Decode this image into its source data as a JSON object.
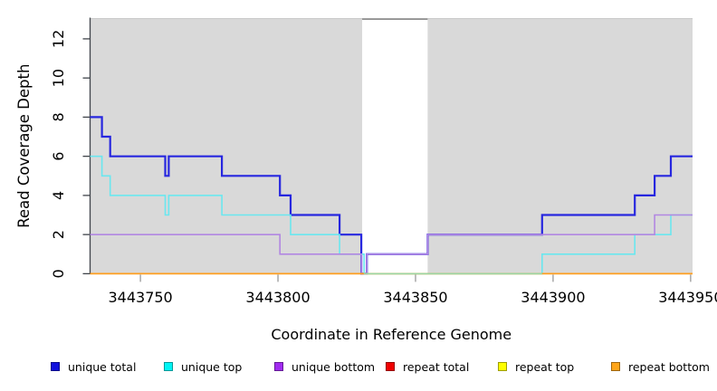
{
  "chart_data": {
    "type": "line",
    "subtype": "step-coverage-plot",
    "title": "",
    "xlabel": "Coordinate in Reference Genome",
    "ylabel": "Read Coverage Depth",
    "xlim": [
      3443731.7,
      3443950.7
    ],
    "ylim": [
      0,
      13.06
    ],
    "grid": "off",
    "panel_background": "#d9d9d9",
    "panel_top_edge_color": "#c9c9c9",
    "axis_line_color": "#3f444a",
    "x_tick_color": "#999999",
    "y_tick_color": "#3f444a",
    "tick_label_color": "#000000",
    "xticks": {
      "values": [
        3443750,
        3443800,
        3443850,
        3443900,
        3443950
      ],
      "labels": [
        "3443750",
        "3443800",
        "3443850",
        "3443900",
        "3443950"
      ]
    },
    "yticks": {
      "values": [
        0,
        2,
        4,
        6,
        8,
        10,
        12
      ],
      "labels": [
        "0",
        "2",
        "4",
        "6",
        "8",
        "10",
        "12"
      ]
    },
    "highlight_region": {
      "x1": 3443830.6,
      "x2": 3443854.4,
      "fill": "#ffffff",
      "top_border_color": "#828282"
    },
    "series": [
      {
        "name": "repeat total",
        "color": "#bb0000",
        "width": 1.2,
        "points": [
          [
            3443731.7,
            0
          ],
          [
            3443950.7,
            0
          ]
        ]
      },
      {
        "name": "repeat top",
        "color": "#e8e800",
        "width": 1.2,
        "points": [
          [
            3443731.7,
            0
          ],
          [
            3443950.7,
            0
          ]
        ]
      },
      {
        "name": "unique total",
        "color": "#2727df",
        "width": 2.2,
        "points": [
          [
            3443731.7,
            8
          ],
          [
            3443736,
            8
          ],
          [
            3443736,
            7
          ],
          [
            3443739,
            7
          ],
          [
            3443739,
            6
          ],
          [
            3443759,
            6
          ],
          [
            3443759,
            5
          ],
          [
            3443760.3,
            5
          ],
          [
            3443760.3,
            6
          ],
          [
            3443779.6,
            6
          ],
          [
            3443779.6,
            5
          ],
          [
            3443800.7,
            5
          ],
          [
            3443800.7,
            4
          ],
          [
            3443804.6,
            4
          ],
          [
            3443804.6,
            3
          ],
          [
            3443822.4,
            3
          ],
          [
            3443822.4,
            2
          ],
          [
            3443830.3,
            2
          ],
          [
            3443830.3,
            0
          ],
          [
            3443832.3,
            0
          ],
          [
            3443832.3,
            1
          ],
          [
            3443854.4,
            1
          ],
          [
            3443854.4,
            2
          ],
          [
            3443896,
            2
          ],
          [
            3443896,
            3
          ],
          [
            3443929.7,
            3
          ],
          [
            3443929.7,
            4
          ],
          [
            3443936.9,
            4
          ],
          [
            3443936.9,
            5
          ],
          [
            3443942.8,
            5
          ],
          [
            3443942.8,
            6
          ],
          [
            3443950.7,
            6
          ]
        ]
      },
      {
        "name": "unique top",
        "color": "#6ae7ef",
        "width": 1.6,
        "points": [
          [
            3443731.7,
            6
          ],
          [
            3443736,
            6
          ],
          [
            3443736,
            5
          ],
          [
            3443739,
            5
          ],
          [
            3443739,
            4
          ],
          [
            3443759,
            4
          ],
          [
            3443759,
            3
          ],
          [
            3443760.3,
            3
          ],
          [
            3443760.3,
            4
          ],
          [
            3443779.6,
            4
          ],
          [
            3443779.6,
            3
          ],
          [
            3443804.6,
            3
          ],
          [
            3443804.6,
            2
          ],
          [
            3443822.4,
            2
          ],
          [
            3443822.4,
            1
          ],
          [
            3443831.3,
            1
          ],
          [
            3443831.3,
            0
          ],
          [
            3443896,
            0
          ],
          [
            3443896,
            1
          ],
          [
            3443929.7,
            1
          ],
          [
            3443929.7,
            2
          ],
          [
            3443942.8,
            2
          ],
          [
            3443942.8,
            3
          ],
          [
            3443950.7,
            3
          ]
        ]
      },
      {
        "name": "unique bottom",
        "color": "#b287e2",
        "width": 1.6,
        "points": [
          [
            3443731.7,
            2
          ],
          [
            3443800.7,
            2
          ],
          [
            3443800.7,
            1
          ],
          [
            3443830.3,
            1
          ],
          [
            3443830.3,
            0
          ],
          [
            3443832.3,
            0
          ],
          [
            3443832.3,
            1
          ],
          [
            3443854.4,
            1
          ],
          [
            3443854.4,
            2
          ],
          [
            3443936.9,
            2
          ],
          [
            3443936.9,
            3
          ],
          [
            3443950.7,
            3
          ]
        ]
      },
      {
        "name": "repeat bottom",
        "color": "#ff9e1e",
        "width": 1.8,
        "points": [
          [
            3443731.7,
            0
          ],
          [
            3443950.7,
            0
          ]
        ]
      }
    ],
    "zero_line_overlay": {
      "x1": 3443831.3,
      "x2": 3443896,
      "y": 0,
      "color": "#99d7a6"
    },
    "legend": [
      {
        "label": "unique total",
        "color": "#1111dd"
      },
      {
        "label": "unique top",
        "color": "#00f5f5"
      },
      {
        "label": "unique bottom",
        "color": "#a12bf0"
      },
      {
        "label": "repeat total",
        "color": "#f00000"
      },
      {
        "label": "repeat top",
        "color": "#ffff00"
      },
      {
        "label": "repeat bottom",
        "color": "#ffa519"
      }
    ]
  }
}
